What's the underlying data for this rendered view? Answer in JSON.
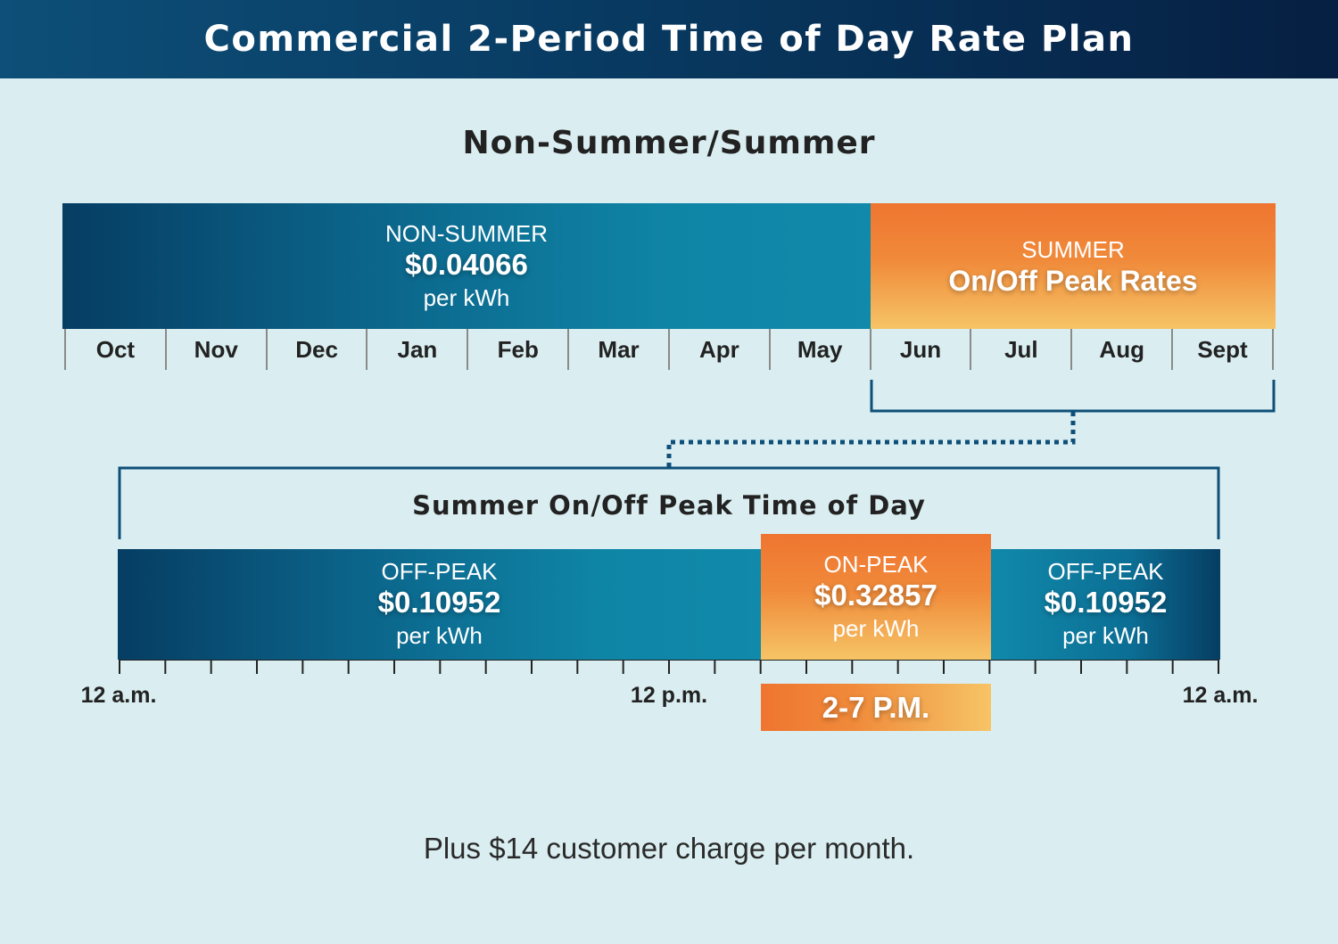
{
  "header": {
    "title": "Commercial 2-Period Time of Day Rate Plan"
  },
  "season_section": {
    "title": "Non-Summer/Summer",
    "non_summer": {
      "label": "NON-SUMMER",
      "rate": "$0.04066",
      "unit": "per kWh"
    },
    "summer": {
      "label": "SUMMER",
      "rate_text": "On/Off Peak Rates"
    },
    "months": [
      "Oct",
      "Nov",
      "Dec",
      "Jan",
      "Feb",
      "Mar",
      "Apr",
      "May",
      "Jun",
      "Jul",
      "Aug",
      "Sept"
    ]
  },
  "day_section": {
    "title": "Summer On/Off Peak Time of Day",
    "off_peak_1": {
      "label": "OFF-PEAK",
      "rate": "$0.10952",
      "unit": "per kWh"
    },
    "on_peak": {
      "label": "ON-PEAK",
      "rate": "$0.32857",
      "unit": "per kWh"
    },
    "off_peak_2": {
      "label": "OFF-PEAK",
      "rate": "$0.10952",
      "unit": "per kWh"
    },
    "time_labels": {
      "start": "12 a.m.",
      "noon": "12 p.m.",
      "end": "12 a.m."
    },
    "on_peak_window": "2-7 P.M.",
    "hour_ticks": 24
  },
  "footer": {
    "note": "Plus $14 customer charge per month."
  },
  "colors": {
    "banner": "#08385f",
    "teal": "#0f85a6",
    "orange": "#ef7530",
    "background": "#daeef1"
  }
}
